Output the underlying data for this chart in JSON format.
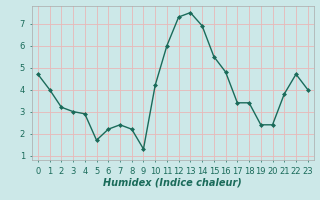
{
  "x": [
    0,
    1,
    2,
    3,
    4,
    5,
    6,
    7,
    8,
    9,
    10,
    11,
    12,
    13,
    14,
    15,
    16,
    17,
    18,
    19,
    20,
    21,
    22,
    23
  ],
  "y": [
    4.7,
    4.0,
    3.2,
    3.0,
    2.9,
    1.7,
    2.2,
    2.4,
    2.2,
    1.3,
    4.2,
    6.0,
    7.3,
    7.5,
    6.9,
    5.5,
    4.8,
    3.4,
    3.4,
    2.4,
    2.4,
    3.8,
    4.7,
    4.0
  ],
  "line_color": "#1a6b5a",
  "marker_color": "#1a6b5a",
  "bg_color": "#cce8e8",
  "grid_color": "#e8b8b8",
  "xlabel": "Humidex (Indice chaleur)",
  "xlim": [
    -0.5,
    23.5
  ],
  "ylim": [
    0.8,
    7.8
  ],
  "yticks": [
    1,
    2,
    3,
    4,
    5,
    6,
    7
  ],
  "xtick_labels": [
    "0",
    "1",
    "2",
    "3",
    "4",
    "5",
    "6",
    "7",
    "8",
    "9",
    "10",
    "11",
    "12",
    "13",
    "14",
    "15",
    "16",
    "17",
    "18",
    "19",
    "20",
    "21",
    "22",
    "23"
  ],
  "xlabel_fontsize": 7,
  "tick_fontsize": 6,
  "line_width": 1.0,
  "marker_size": 2.0
}
